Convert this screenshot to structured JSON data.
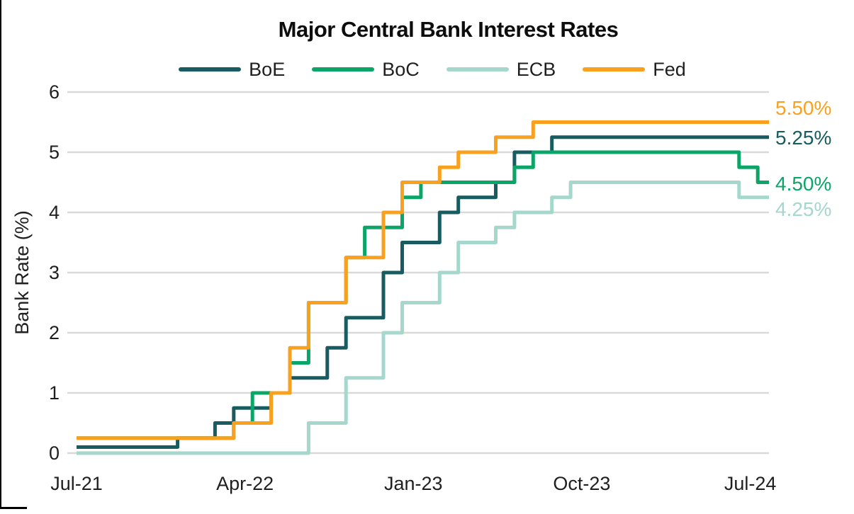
{
  "title": "Major Central Bank Interest Rates",
  "chart_data": {
    "type": "line",
    "step": true,
    "title": "Major Central Bank Interest Rates",
    "xlabel": "",
    "ylabel": "Bank Rate (%)",
    "ylim": [
      0,
      6
    ],
    "yticks": [
      0,
      1,
      2,
      3,
      4,
      5,
      6
    ],
    "xticks": [
      "Jul-21",
      "Apr-22",
      "Jan-23",
      "Oct-23",
      "Jul-24"
    ],
    "x_start": "Jul-21",
    "x_end": "Aug-24",
    "grid": true,
    "legend_position": "top",
    "grid_color": "#D9D9D9",
    "series": [
      {
        "name": "BoE",
        "color": "#185C61",
        "end_label": "5.25%",
        "changes": [
          [
            "Jul-21",
            0.1
          ],
          [
            "Dec-21",
            0.25
          ],
          [
            "Feb-22",
            0.5
          ],
          [
            "Mar-22",
            0.75
          ],
          [
            "May-22",
            1.0
          ],
          [
            "Jun-22",
            1.25
          ],
          [
            "Aug-22",
            1.75
          ],
          [
            "Sep-22",
            2.25
          ],
          [
            "Nov-22",
            3.0
          ],
          [
            "Dec-22",
            3.5
          ],
          [
            "Feb-23",
            4.0
          ],
          [
            "Mar-23",
            4.25
          ],
          [
            "May-23",
            4.5
          ],
          [
            "Jun-23",
            5.0
          ],
          [
            "Aug-23",
            5.25
          ]
        ]
      },
      {
        "name": "BoC",
        "color": "#0BA567",
        "end_label": "4.50%",
        "changes": [
          [
            "Jul-21",
            0.25
          ],
          [
            "Mar-22",
            0.5
          ],
          [
            "Apr-22",
            1.0
          ],
          [
            "Jun-22",
            1.5
          ],
          [
            "Jul-22",
            2.5
          ],
          [
            "Sep-22",
            3.25
          ],
          [
            "Oct-22",
            3.75
          ],
          [
            "Dec-22",
            4.25
          ],
          [
            "Jan-23",
            4.5
          ],
          [
            "Jun-23",
            4.75
          ],
          [
            "Jul-23",
            5.0
          ],
          [
            "Jun-24",
            4.75
          ],
          [
            "Jul-24",
            4.5
          ]
        ]
      },
      {
        "name": "ECB",
        "color": "#A5D7CC",
        "end_label": "4.25%",
        "changes": [
          [
            "Jul-21",
            0.0
          ],
          [
            "Jul-22",
            0.5
          ],
          [
            "Sep-22",
            1.25
          ],
          [
            "Nov-22",
            2.0
          ],
          [
            "Dec-22",
            2.5
          ],
          [
            "Feb-23",
            3.0
          ],
          [
            "Mar-23",
            3.5
          ],
          [
            "May-23",
            3.75
          ],
          [
            "Jun-23",
            4.0
          ],
          [
            "Aug-23",
            4.25
          ],
          [
            "Sep-23",
            4.5
          ],
          [
            "Jun-24",
            4.25
          ]
        ]
      },
      {
        "name": "Fed",
        "color": "#F9A11E",
        "end_label": "5.50%",
        "changes": [
          [
            "Jul-21",
            0.25
          ],
          [
            "Mar-22",
            0.5
          ],
          [
            "May-22",
            1.0
          ],
          [
            "Jun-22",
            1.75
          ],
          [
            "Jul-22",
            2.5
          ],
          [
            "Sep-22",
            3.25
          ],
          [
            "Nov-22",
            4.0
          ],
          [
            "Dec-22",
            4.5
          ],
          [
            "Feb-23",
            4.75
          ],
          [
            "Mar-23",
            5.0
          ],
          [
            "May-23",
            5.25
          ],
          [
            "Jul-23",
            5.5
          ]
        ]
      }
    ]
  }
}
